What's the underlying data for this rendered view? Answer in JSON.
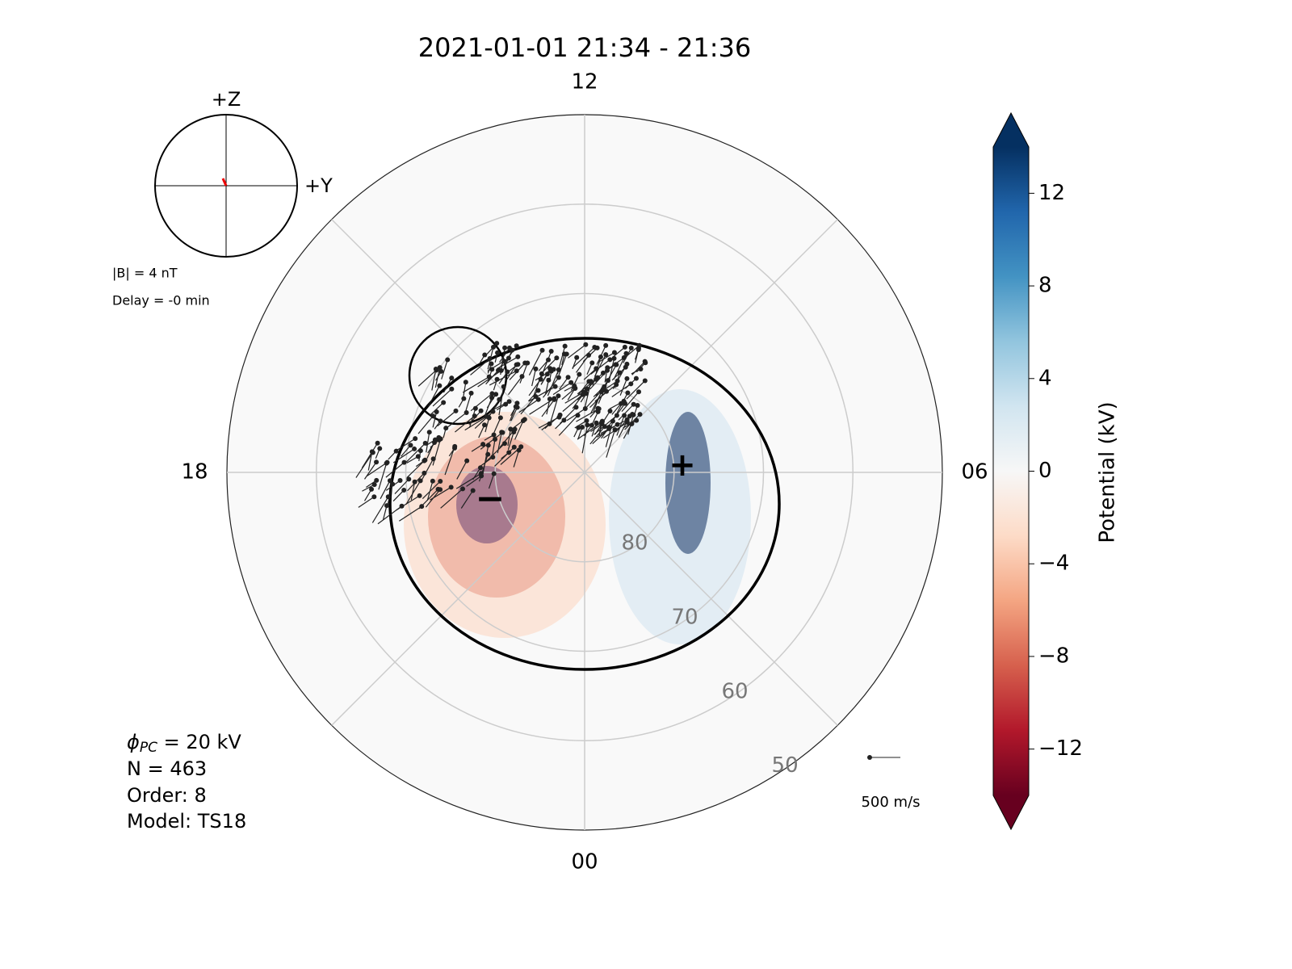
{
  "chart_data": {
    "type": "polar",
    "title": "2021-01-01 21:34 - 21:36",
    "xlim": [
      0,
      24
    ],
    "xticks": [
      12,
      {
        "value": 6,
        "label": "06"
      },
      {
        "value": 0,
        "label": "00"
      },
      18
    ],
    "ylim": [
      90,
      50
    ],
    "yticks": [
      80,
      70,
      60,
      50
    ],
    "grid": true,
    "imf_dial": {
      "z_label": "+Z",
      "y_label": "+Y",
      "magnitude": "|B| = 4 nT",
      "delay": "Delay = -0 min"
    },
    "stats": {
      "phi_symbol": "ϕ",
      "phi_subscript": "PC",
      "phi_text": " = 20 kV",
      "n": "N = 463",
      "order": "Order: 8",
      "model": "Model: TS18"
    },
    "reference_vector": "500 m/s",
    "extrema": {
      "min": "−",
      "max": "+"
    },
    "colorbar": {
      "label": "Potential (kV)",
      "lim": [
        -14,
        14
      ],
      "ticks": [
        {
          "value": -12,
          "label": "−12"
        },
        {
          "value": -8,
          "label": "−8"
        },
        {
          "value": -4,
          "label": "−4"
        },
        0,
        4,
        8,
        12
      ],
      "colors": [
        "#67001f",
        "#b2182b",
        "#d6604d",
        "#f4a582",
        "#fddbc7",
        "#f7f7f7",
        "#d1e5f0",
        "#92c5de",
        "#4393c3",
        "#2166ac",
        "#053061"
      ]
    }
  }
}
